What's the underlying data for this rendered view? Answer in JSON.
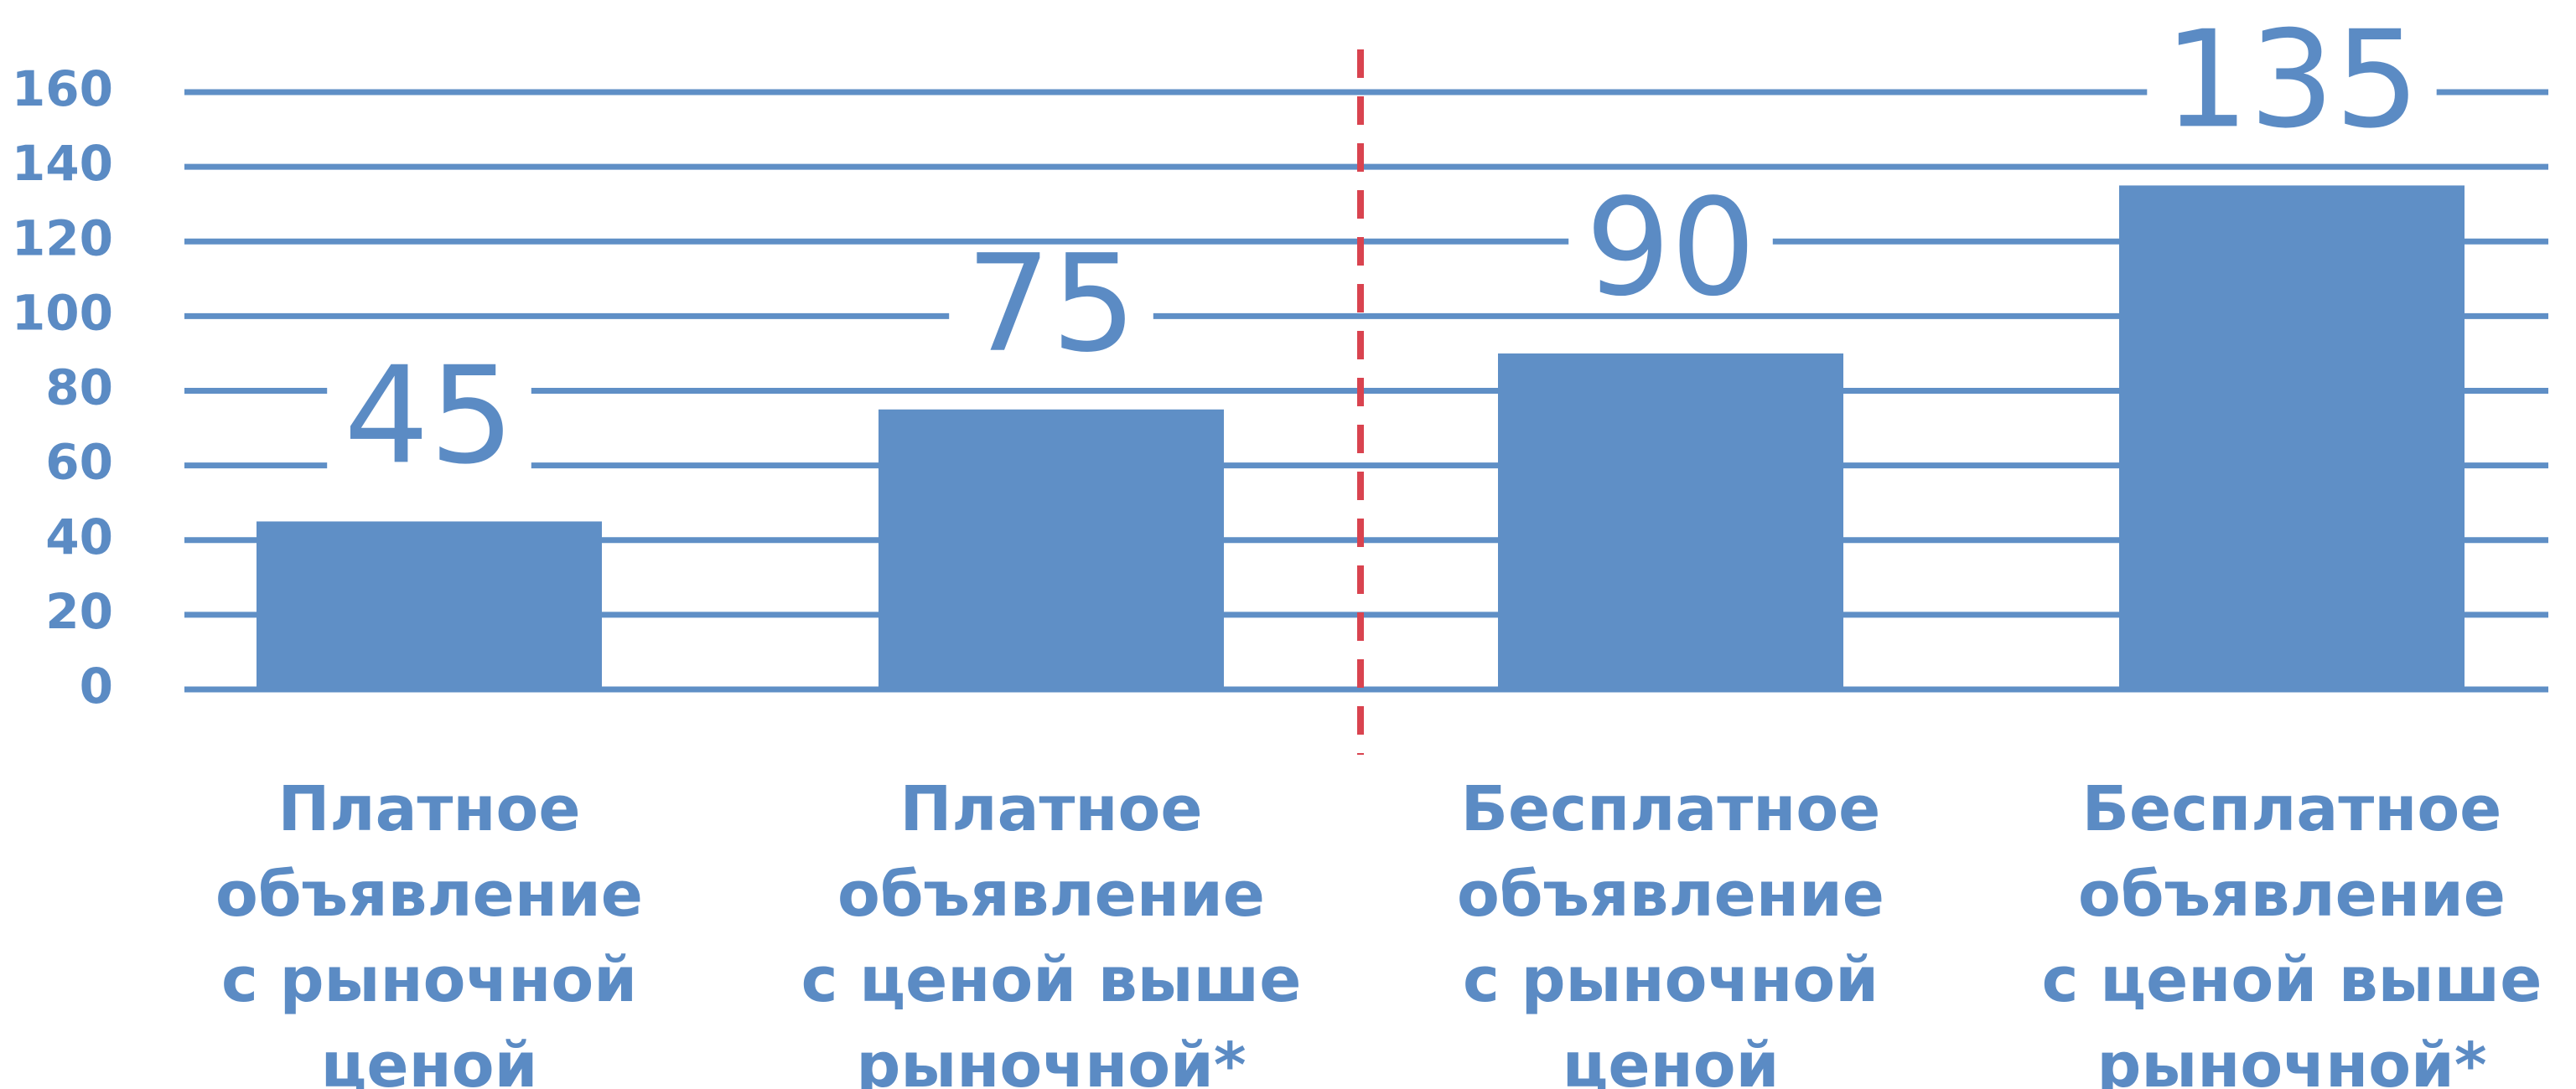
{
  "chart_data": {
    "type": "bar",
    "categories": [
      [
        "Платное",
        "объявление",
        "с рыночной",
        "ценой"
      ],
      [
        "Платное",
        "объявление",
        "с ценой выше",
        "рыночной*"
      ],
      [
        "Бесплатное",
        "объявление",
        "с рыночной",
        "ценой"
      ],
      [
        "Бесплатное",
        "объявление",
        "с ценой выше",
        "рыночной*"
      ]
    ],
    "values": [
      45,
      75,
      90,
      135
    ],
    "color": "#5f8fc6",
    "ylim": [
      0,
      160
    ],
    "yticks": [
      0,
      20,
      40,
      60,
      80,
      100,
      120,
      140,
      160
    ],
    "grid": true
  }
}
